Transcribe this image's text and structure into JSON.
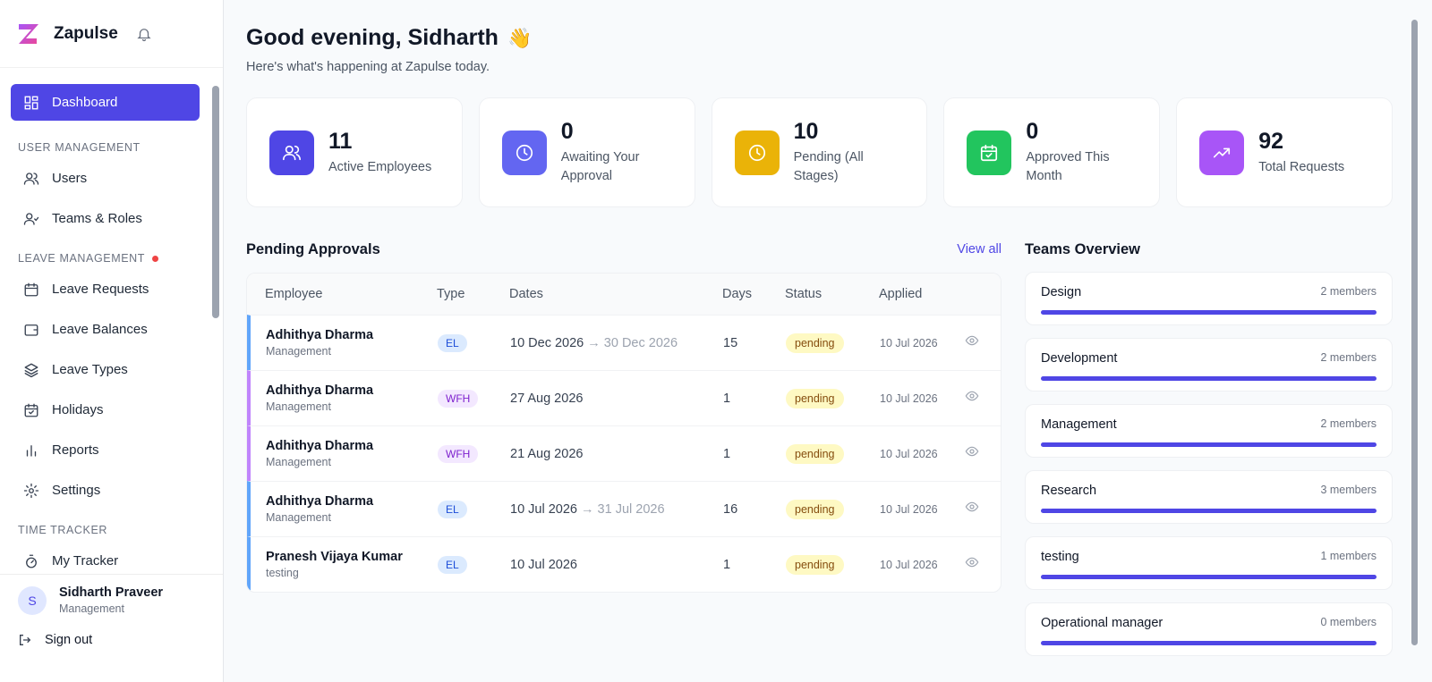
{
  "sidebar": {
    "brand": "Zapulse",
    "active": "Dashboard",
    "sections": [
      {
        "title": "USER MANAGEMENT",
        "items": [
          "Users",
          "Teams & Roles"
        ]
      },
      {
        "title": "LEAVE MANAGEMENT",
        "items": [
          "Leave Requests",
          "Leave Balances",
          "Leave Types",
          "Holidays",
          "Reports",
          "Settings"
        ]
      },
      {
        "title": "TIME TRACKER",
        "items": [
          "My Tracker"
        ]
      }
    ],
    "user": {
      "initial": "S",
      "name": "Sidharth Praveer",
      "team": "Management"
    },
    "sign_out": "Sign out"
  },
  "header": {
    "title": "Good evening, Sidharth",
    "emoji": "👋",
    "subtitle": "Here's what's happening at Zapulse today."
  },
  "stats": [
    {
      "value": 11,
      "label": "Active Employees"
    },
    {
      "value": 0,
      "label": "Awaiting Your Approval"
    },
    {
      "value": 10,
      "label": "Pending (All Stages)"
    },
    {
      "value": 0,
      "label": "Approved This Month"
    },
    {
      "value": 92,
      "label": "Total Requests"
    }
  ],
  "pending": {
    "title": "Pending Approvals",
    "link": "View all",
    "columns": [
      "Employee",
      "Type",
      "Dates",
      "Days",
      "Status",
      "Applied"
    ],
    "rows": [
      {
        "name": "Adhithya Dharma",
        "team": "Management",
        "type": "EL",
        "start": "10 Dec 2026",
        "end": "→ 30 Dec 2026",
        "days": 15,
        "status": "pending",
        "applied": "10 Jul 2026"
      },
      {
        "name": "Adhithya Dharma",
        "team": "Management",
        "type": "WFH",
        "start": "27 Aug 2026",
        "end": null,
        "days": 1,
        "status": "pending",
        "applied": "10 Jul 2026"
      },
      {
        "name": "Adhithya Dharma",
        "team": "Management",
        "type": "WFH",
        "start": "21 Aug 2026",
        "end": null,
        "days": 1,
        "status": "pending",
        "applied": "10 Jul 2026"
      },
      {
        "name": "Adhithya Dharma",
        "team": "Management",
        "type": "EL",
        "start": "10 Jul 2026",
        "end": "→ 31 Jul 2026",
        "days": 16,
        "status": "pending",
        "applied": "10 Jul 2026"
      },
      {
        "name": "Pranesh Vijaya Kumar",
        "team": "testing",
        "type": "EL",
        "start": "10 Jul 2026",
        "end": null,
        "days": 1,
        "status": "pending",
        "applied": "10 Jul 2026"
      }
    ]
  },
  "teams": {
    "title": "Teams Overview",
    "items": [
      {
        "name": "Design",
        "members": "2 members"
      },
      {
        "name": "Development",
        "members": "2 members"
      },
      {
        "name": "Management",
        "members": "2 members"
      },
      {
        "name": "Research",
        "members": "3 members"
      },
      {
        "name": "testing",
        "members": "1 members"
      },
      {
        "name": "Operational manager",
        "members": "0 members"
      }
    ]
  }
}
